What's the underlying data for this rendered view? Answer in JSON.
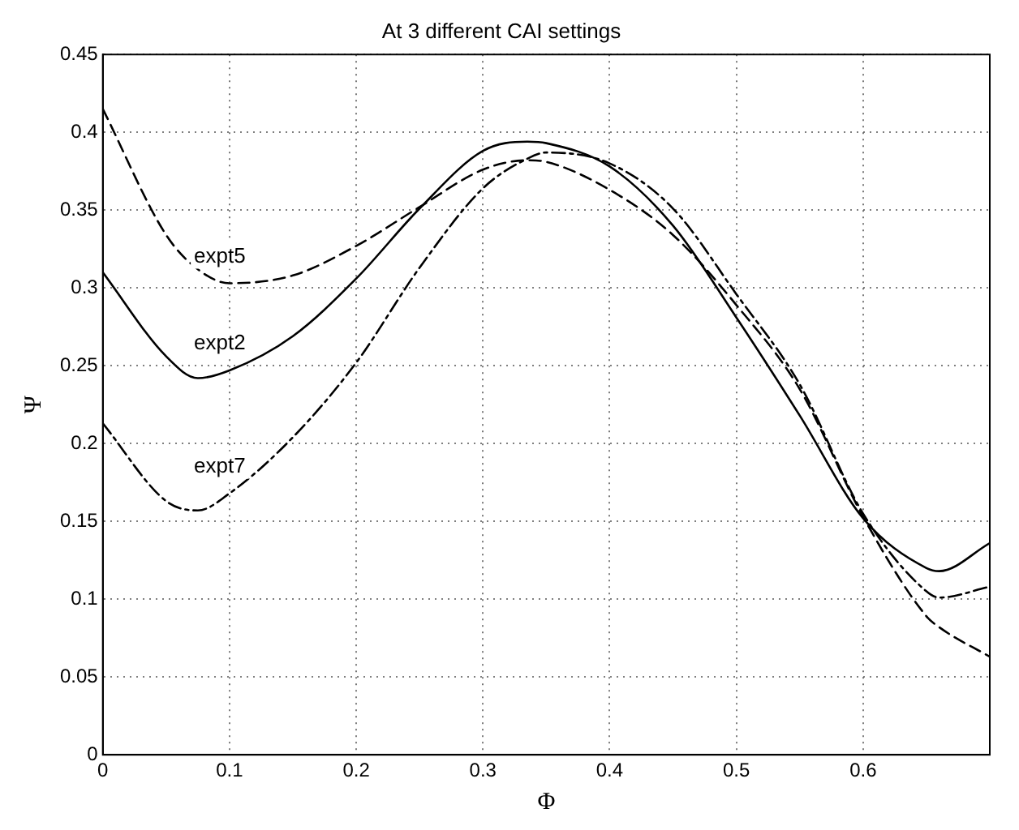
{
  "chart_data": {
    "type": "line",
    "title": "At 3 different CAI settings",
    "xlabel": "Φ",
    "ylabel": "Ψ",
    "x": [
      0,
      0.05,
      0.075,
      0.1,
      0.15,
      0.2,
      0.25,
      0.3,
      0.335,
      0.35,
      0.4,
      0.45,
      0.5,
      0.55,
      0.6,
      0.65,
      0.66,
      0.7
    ],
    "series": [
      {
        "name": "expt5",
        "color": "#000000",
        "line_style": "dashed",
        "values": [
          0.415,
          0.334,
          0.312,
          0.303,
          0.308,
          0.327,
          0.352,
          0.376,
          0.382,
          0.381,
          0.363,
          0.334,
          0.289,
          0.235,
          0.153,
          0.089,
          0.082,
          0.063
        ]
      },
      {
        "name": "expt2",
        "color": "#000000",
        "line_style": "solid",
        "values": [
          0.31,
          0.256,
          0.242,
          0.247,
          0.269,
          0.306,
          0.351,
          0.388,
          0.394,
          0.393,
          0.378,
          0.34,
          0.281,
          0.218,
          0.152,
          0.12,
          0.118,
          0.136
        ]
      },
      {
        "name": "expt7",
        "color": "#000000",
        "line_style": "dashdot",
        "values": [
          0.213,
          0.163,
          0.157,
          0.168,
          0.204,
          0.252,
          0.313,
          0.364,
          0.383,
          0.387,
          0.38,
          0.351,
          0.296,
          0.238,
          0.155,
          0.105,
          0.101,
          0.108
        ]
      }
    ],
    "xlim": [
      0,
      0.7
    ],
    "xticks": [
      0,
      0.1,
      0.2,
      0.3,
      0.4,
      0.5,
      0.6
    ],
    "ylim": [
      0,
      0.45
    ],
    "yticks": [
      0,
      0.05,
      0.1,
      0.15,
      0.2,
      0.25,
      0.3,
      0.35,
      0.4,
      0.45
    ],
    "grid": true,
    "legend": false,
    "marker": "none"
  }
}
